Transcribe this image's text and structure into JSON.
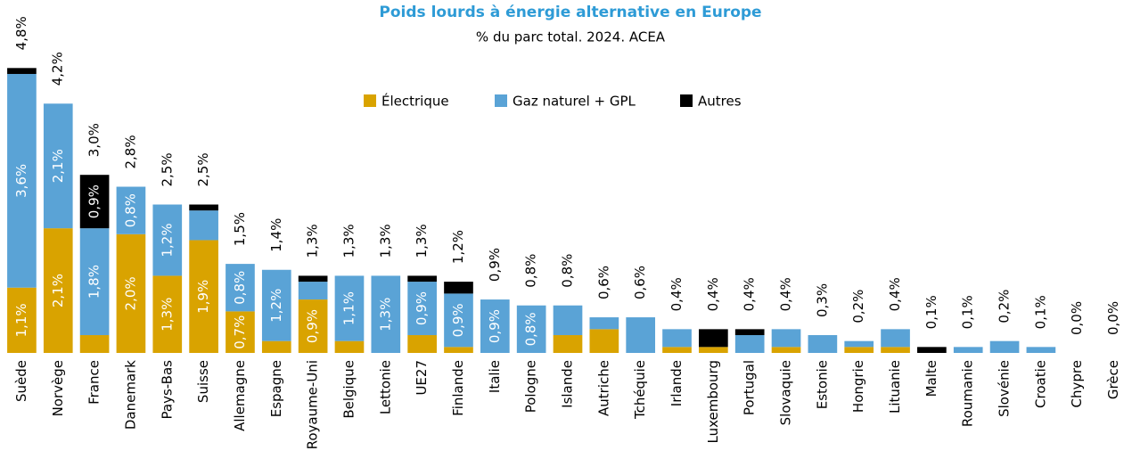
{
  "chart_data": {
    "type": "stacked_bar",
    "title": "Poids lourds à énergie alternative en Europe",
    "subtitle": "% du parc total. 2024. ACEA",
    "categories": [
      "Suède",
      "Norvège",
      "France",
      "Danemark",
      "Pays-Bas",
      "Suisse",
      "Allemagne",
      "Espagne",
      "Royaume-Uni",
      "Belgique",
      "Lettonie",
      "UE27",
      "Finlande",
      "Italie",
      "Pologne",
      "Islande",
      "Autriche",
      "Tchéquie",
      "Irlande",
      "Luxembourg",
      "Portugal",
      "Slovaquie",
      "Estonie",
      "Hongrie",
      "Lituanie",
      "Malte",
      "Roumanie",
      "Slovénie",
      "Croatie",
      "Chypre",
      "Grèce"
    ],
    "series": [
      {
        "name": "Électrique",
        "color": "#d9a300",
        "values": [
          1.1,
          2.1,
          0.3,
          2.0,
          1.3,
          1.9,
          0.7,
          0.2,
          0.9,
          0.2,
          0,
          0.3,
          0.1,
          0,
          0,
          0.3,
          0.4,
          0,
          0.1,
          0.1,
          0,
          0.1,
          0,
          0.1,
          0.1,
          0,
          0,
          0,
          0,
          0,
          0
        ],
        "value_labels": [
          "1,1%",
          "2,1%",
          null,
          "2,0%",
          "1,3%",
          "1,9%",
          "0,7%",
          null,
          "0,9%",
          null,
          null,
          null,
          null,
          null,
          null,
          null,
          null,
          null,
          null,
          null,
          null,
          null,
          null,
          null,
          null,
          null,
          null,
          null,
          null,
          null,
          null
        ]
      },
      {
        "name": "Gaz naturel + GPL",
        "color": "#5aa3d6",
        "values": [
          3.6,
          2.1,
          1.8,
          0.8,
          1.2,
          0.5,
          0.8,
          1.2,
          0.3,
          1.1,
          1.3,
          0.9,
          0.9,
          0.9,
          0.8,
          0.5,
          0.2,
          0.6,
          0.3,
          0,
          0.3,
          0.3,
          0.3,
          0.1,
          0.3,
          0,
          0.1,
          0.2,
          0.1,
          0,
          0
        ],
        "value_labels": [
          "3,6%",
          "2,1%",
          "1,8%",
          "0,8%",
          "1,2%",
          null,
          "0,8%",
          "1,2%",
          null,
          "1,1%",
          "1,3%",
          "0,9%",
          "0,9%",
          "0,9%",
          "0,8%",
          null,
          null,
          null,
          null,
          null,
          null,
          null,
          null,
          null,
          null,
          null,
          null,
          null,
          null,
          null,
          null
        ]
      },
      {
        "name": "Autres",
        "color": "#000000",
        "values": [
          0.1,
          0,
          0.9,
          0,
          0,
          0.1,
          0,
          0,
          0.1,
          0,
          0,
          0.1,
          0.2,
          0,
          0,
          0,
          0,
          0,
          0,
          0.3,
          0.1,
          0,
          0,
          0,
          0,
          0.1,
          0,
          0,
          0,
          0,
          0
        ],
        "value_labels": [
          null,
          null,
          "0,9%",
          null,
          null,
          null,
          null,
          null,
          null,
          null,
          null,
          null,
          null,
          null,
          null,
          null,
          null,
          null,
          null,
          null,
          null,
          null,
          null,
          null,
          null,
          null,
          null,
          null,
          null,
          null,
          null
        ]
      }
    ],
    "totals": [
      4.8,
      4.2,
      3.0,
      2.8,
      2.5,
      2.5,
      1.5,
      1.4,
      1.3,
      1.3,
      1.3,
      1.3,
      1.2,
      0.9,
      0.8,
      0.8,
      0.6,
      0.6,
      0.4,
      0.4,
      0.4,
      0.4,
      0.3,
      0.2,
      0.4,
      0.1,
      0.1,
      0.2,
      0.1,
      0.0,
      0.0
    ],
    "total_labels": [
      "4,8%",
      "4,2%",
      "3,0%",
      "2,8%",
      "2,5%",
      "2,5%",
      "1,5%",
      "1,4%",
      "1,3%",
      "1,3%",
      "1,3%",
      "1,3%",
      "1,2%",
      "0,9%",
      "0,8%",
      "0,8%",
      "0,6%",
      "0,6%",
      "0,4%",
      "0,4%",
      "0,4%",
      "0,4%",
      "0,3%",
      "0,2%",
      "0,4%",
      "0,1%",
      "0,1%",
      "0,2%",
      "0,1%",
      "0,0%",
      "0,0%"
    ],
    "ylim": [
      0,
      5
    ],
    "legend": "top"
  }
}
